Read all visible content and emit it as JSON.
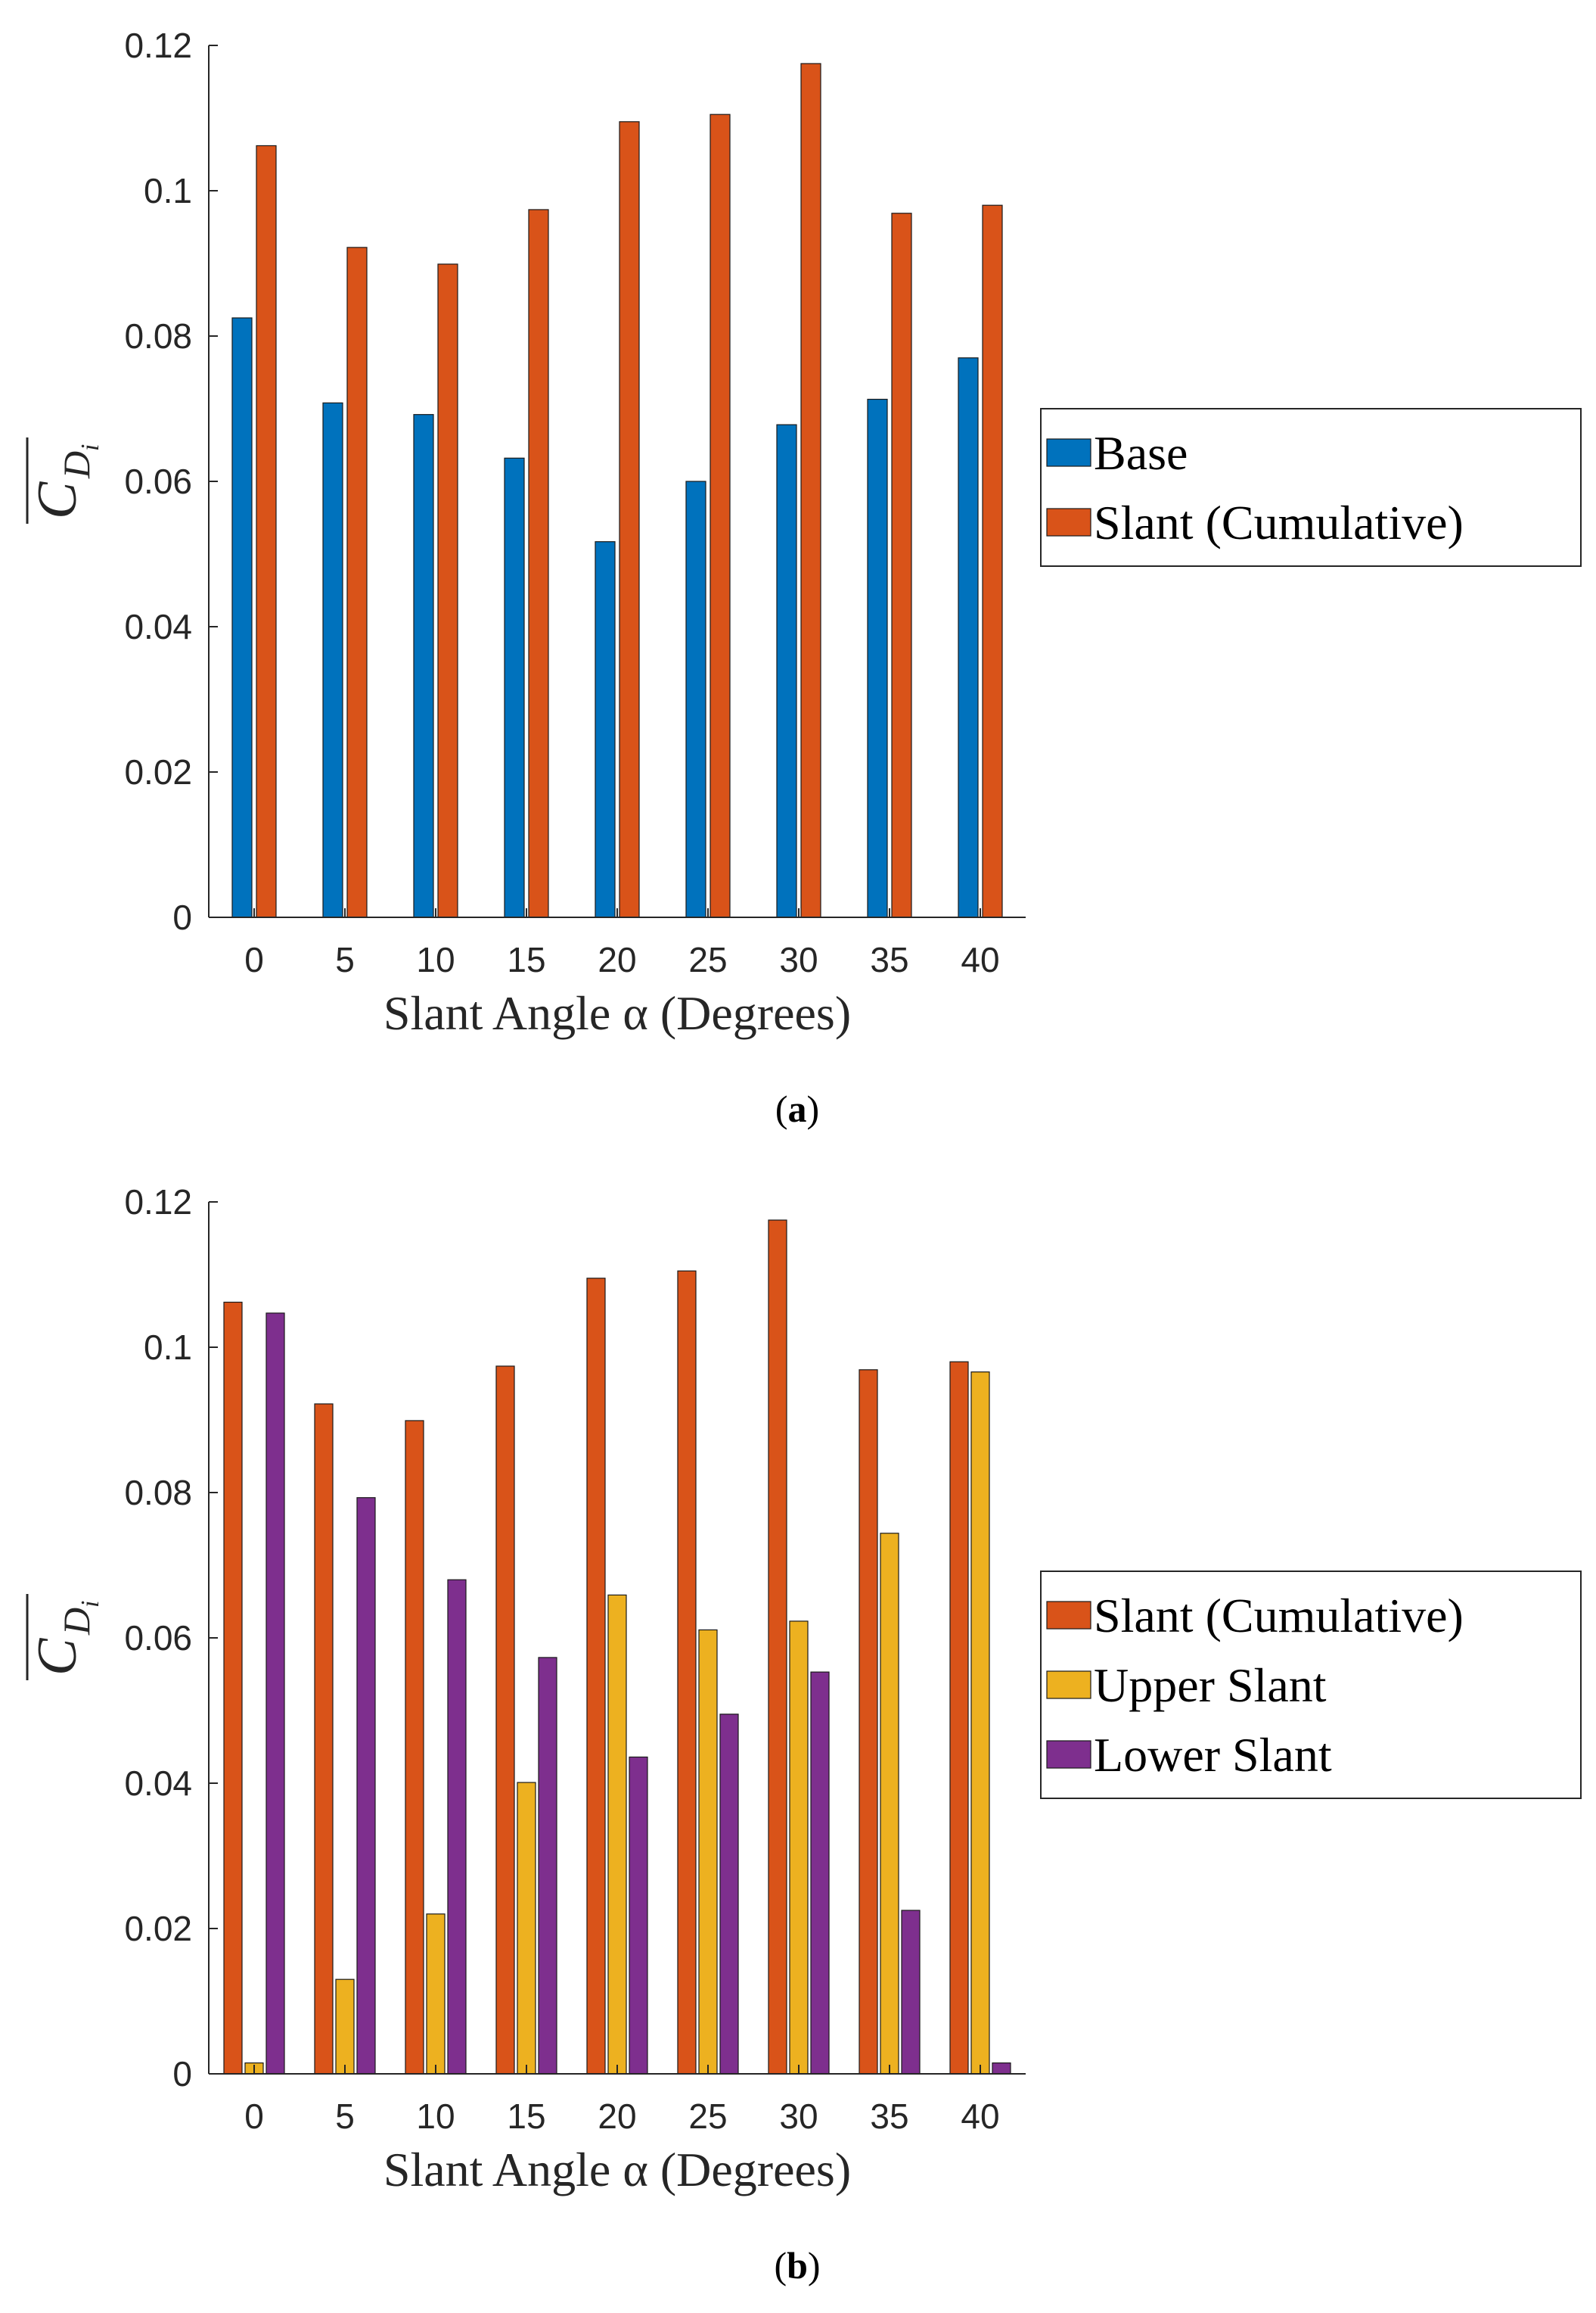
{
  "colors": {
    "base": "#0072BD",
    "slant": "#D95319",
    "upper": "#EDB120",
    "lower": "#7E2F8E",
    "axis": "#262626"
  },
  "chart_data": [
    {
      "type": "bar",
      "caption": "(a)",
      "caption_letter": "a",
      "ylabel_main": "C",
      "ylabel_sub": "D",
      "ylabel_subsub": "i",
      "xlabel": "Slant Angle α (Degrees)",
      "categories": [
        "0",
        "5",
        "10",
        "15",
        "20",
        "25",
        "30",
        "35",
        "40"
      ],
      "ylim": [
        0,
        0.12
      ],
      "yticks": [
        "0",
        "0.02",
        "0.04",
        "0.06",
        "0.08",
        "0.1",
        "0.12"
      ],
      "ytick_values": [
        0,
        0.02,
        0.04,
        0.06,
        0.08,
        0.1,
        0.12
      ],
      "legend_position": "right",
      "series": [
        {
          "name": "Base",
          "color_key": "base",
          "values": [
            0.0825,
            0.0708,
            0.0692,
            0.0632,
            0.0517,
            0.06,
            0.0678,
            0.0713,
            0.077
          ]
        },
        {
          "name": "Slant (Cumulative)",
          "color_key": "slant",
          "values": [
            0.1062,
            0.0922,
            0.0899,
            0.0974,
            0.1095,
            0.1105,
            0.1175,
            0.0969,
            0.098
          ]
        }
      ]
    },
    {
      "type": "bar",
      "caption": "(b)",
      "caption_letter": "b",
      "ylabel_main": "C",
      "ylabel_sub": "D",
      "ylabel_subsub": "i",
      "xlabel": "Slant Angle α (Degrees)",
      "categories": [
        "0",
        "5",
        "10",
        "15",
        "20",
        "25",
        "30",
        "35",
        "40"
      ],
      "ylim": [
        0,
        0.12
      ],
      "yticks": [
        "0",
        "0.02",
        "0.04",
        "0.06",
        "0.08",
        "0.1",
        "0.12"
      ],
      "ytick_values": [
        0,
        0.02,
        0.04,
        0.06,
        0.08,
        0.1,
        0.12
      ],
      "legend_position": "right",
      "series": [
        {
          "name": "Slant (Cumulative)",
          "color_key": "slant",
          "values": [
            0.1062,
            0.0922,
            0.0899,
            0.0974,
            0.1095,
            0.1105,
            0.1175,
            0.0969,
            0.098
          ]
        },
        {
          "name": "Upper Slant",
          "color_key": "upper",
          "values": [
            0.0015,
            0.013,
            0.022,
            0.0401,
            0.0659,
            0.0611,
            0.0623,
            0.0744,
            0.0966
          ]
        },
        {
          "name": "Lower Slant",
          "color_key": "lower",
          "values": [
            0.1047,
            0.0793,
            0.068,
            0.0573,
            0.0436,
            0.0495,
            0.0553,
            0.0225,
            0.0015
          ]
        }
      ]
    }
  ]
}
